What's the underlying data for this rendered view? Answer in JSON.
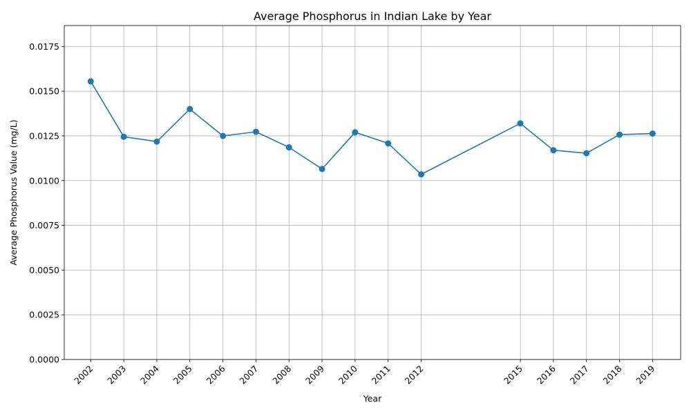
{
  "chart_data": {
    "type": "line",
    "title": "Average Phosphorus in Indian Lake by Year",
    "xlabel": "Year",
    "ylabel": "Average Phosphorus Value (mg/L)",
    "x": [
      2002,
      2003,
      2004,
      2005,
      2006,
      2007,
      2008,
      2009,
      2010,
      2011,
      2012,
      2015,
      2016,
      2017,
      2018,
      2019
    ],
    "x_tick_labels": [
      "2002",
      "2003",
      "2004",
      "2005",
      "2006",
      "2007",
      "2008",
      "2009",
      "2010",
      "2011",
      "2012",
      "2015",
      "2016",
      "2017",
      "2018",
      "2019"
    ],
    "series": [
      {
        "values": [
          0.01555,
          0.01245,
          0.01218,
          0.014,
          0.0125,
          0.01273,
          0.01186,
          0.01065,
          0.0127,
          0.01208,
          0.01035,
          0.0132,
          0.0117,
          0.01153,
          0.01257,
          0.01263
        ],
        "color": "#1f77b4",
        "marker": "circle"
      }
    ],
    "y_ticks": [
      0.0,
      0.0025,
      0.005,
      0.0075,
      0.01,
      0.0125,
      0.015,
      0.0175
    ],
    "y_tick_labels": [
      "0.0000",
      "0.0025",
      "0.0050",
      "0.0075",
      "0.0100",
      "0.0125",
      "0.0150",
      "0.0175"
    ],
    "xlim": [
      2001.2,
      2019.85
    ],
    "ylim": [
      0,
      0.01867
    ],
    "grid": true,
    "x_tick_rotation": 45
  }
}
